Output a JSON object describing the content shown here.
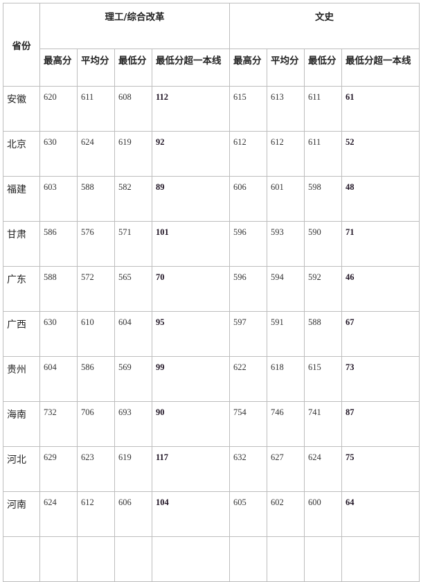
{
  "header": {
    "province": "省份",
    "groups": [
      "理工/综合改革",
      "文史"
    ],
    "columns": [
      "最高分",
      "平均分",
      "最低分",
      "最低分超一本线",
      "最高分",
      "平均分",
      "最低分",
      "最低分超一本线"
    ]
  },
  "rows": [
    {
      "province": "安徽",
      "values": [
        "620",
        "611",
        "608",
        "112",
        "615",
        "613",
        "611",
        "61"
      ]
    },
    {
      "province": "北京",
      "values": [
        "630",
        "624",
        "619",
        "92",
        "612",
        "612",
        "611",
        "52"
      ]
    },
    {
      "province": "福建",
      "values": [
        "603",
        "588",
        "582",
        "89",
        "606",
        "601",
        "598",
        "48"
      ]
    },
    {
      "province": "甘肃",
      "values": [
        "586",
        "576",
        "571",
        "101",
        "596",
        "593",
        "590",
        "71"
      ]
    },
    {
      "province": "广东",
      "values": [
        "588",
        "572",
        "565",
        "70",
        "596",
        "594",
        "592",
        "46"
      ]
    },
    {
      "province": "广西",
      "values": [
        "630",
        "610",
        "604",
        "95",
        "597",
        "591",
        "588",
        "67"
      ]
    },
    {
      "province": "贵州",
      "values": [
        "604",
        "586",
        "569",
        "99",
        "622",
        "618",
        "615",
        "73"
      ]
    },
    {
      "province": "海南",
      "values": [
        "732",
        "706",
        "693",
        "90",
        "754",
        "746",
        "741",
        "87"
      ]
    },
    {
      "province": "河北",
      "values": [
        "629",
        "623",
        "619",
        "117",
        "632",
        "627",
        "624",
        "75"
      ]
    },
    {
      "province": "河南",
      "values": [
        "624",
        "612",
        "606",
        "104",
        "605",
        "602",
        "600",
        "64"
      ]
    }
  ]
}
